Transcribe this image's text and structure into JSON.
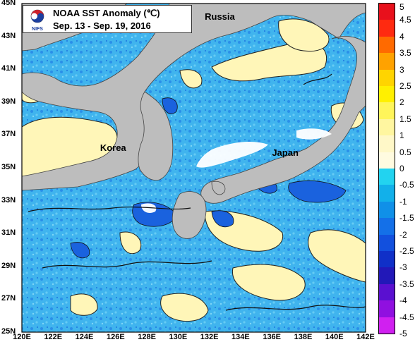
{
  "title": "NOAA SST Anomaly (℃)",
  "subtitle": "Sep. 13 - Sep. 19, 2016",
  "logo_text": "NIFS",
  "map": {
    "lon_range": [
      120,
      142
    ],
    "lat_range": [
      25,
      45
    ],
    "lat_labels": [
      "45N",
      "43N",
      "41N",
      "39N",
      "37N",
      "35N",
      "33N",
      "31N",
      "29N",
      "27N",
      "25N"
    ],
    "lon_labels": [
      "120E",
      "122E",
      "124E",
      "126E",
      "128E",
      "130E",
      "132E",
      "134E",
      "136E",
      "138E",
      "140E",
      "142E"
    ],
    "places": [
      {
        "name": "Russia",
        "lon": 132.7,
        "lat": 44.2
      },
      {
        "name": "Korea",
        "lon": 126.0,
        "lat": 36.2
      },
      {
        "name": "Japan",
        "lon": 137.0,
        "lat": 35.9
      }
    ]
  },
  "colorbar": {
    "labels": [
      "5",
      "4.5",
      "4",
      "3.5",
      "3",
      "2.5",
      "2",
      "1.5",
      "1",
      "0.5",
      "0",
      "-0.5",
      "-1",
      "-1.5",
      "-2",
      "-2.5",
      "-3",
      "-3.5",
      "-4",
      "-4.5",
      "-5"
    ],
    "colors": [
      "#e8101c",
      "#ff2a10",
      "#ff6a00",
      "#ffa200",
      "#ffd400",
      "#fff000",
      "#fff55a",
      "#fff6a0",
      "#fff8c8",
      "#fffbe0",
      "#22d3f0",
      "#12b0ea",
      "#1090e8",
      "#1470e8",
      "#1250de",
      "#1030c8",
      "#2218b8",
      "#5a10d0",
      "#9010e0",
      "#d020f0"
    ]
  },
  "colors": {
    "land": "#bdbdbd",
    "ocean_base": "#3fb6ee",
    "warm": "#fff7c6",
    "cold": "#1a6fe0",
    "cloud": "#ffffff"
  }
}
